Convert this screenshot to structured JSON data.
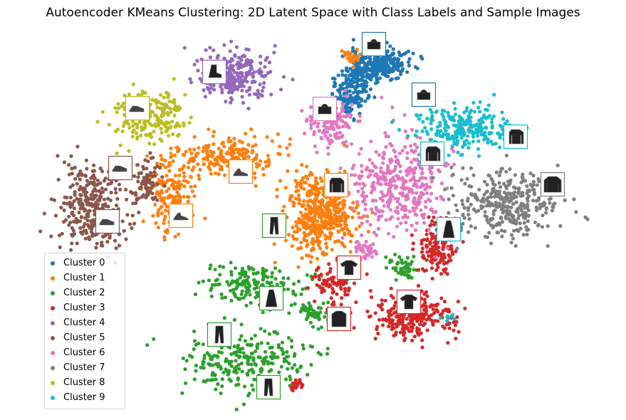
{
  "chart_data": {
    "type": "scatter",
    "title": "Autoencoder KMeans Clustering: 2D Latent Space with Class Labels and Sample Images",
    "xlabel": "",
    "ylabel": "",
    "axes_visible": false,
    "grid": false,
    "legend_position": "lower-left",
    "series": [
      {
        "name": "Cluster 0",
        "color": "#1f77b4",
        "regions": [
          [
            535,
            90,
            34,
            20,
            260
          ],
          [
            490,
            130,
            22,
            26,
            140
          ],
          [
            505,
            105,
            18,
            12,
            60
          ]
        ]
      },
      {
        "name": "Cluster 1",
        "color": "#ff7f0e",
        "regions": [
          [
            450,
            300,
            38,
            50,
            500
          ],
          [
            320,
            220,
            70,
            22,
            220
          ],
          [
            240,
            280,
            30,
            40,
            160
          ],
          [
            495,
            80,
            12,
            8,
            25
          ]
        ]
      },
      {
        "name": "Cluster 2",
        "color": "#2ca02c",
        "regions": [
          [
            340,
            505,
            75,
            35,
            260
          ],
          [
            360,
            400,
            60,
            20,
            180
          ],
          [
            565,
            375,
            18,
            12,
            50
          ],
          [
            440,
            440,
            20,
            15,
            50
          ]
        ]
      },
      {
        "name": "Cluster 3",
        "color": "#d62728",
        "regions": [
          [
            580,
            445,
            50,
            25,
            250
          ],
          [
            615,
            350,
            25,
            30,
            140
          ],
          [
            470,
            400,
            25,
            25,
            90
          ],
          [
            415,
            540,
            10,
            8,
            20
          ]
        ]
      },
      {
        "name": "Cluster 4",
        "color": "#9467bd",
        "regions": [
          [
            330,
            105,
            42,
            28,
            260
          ]
        ]
      },
      {
        "name": "Cluster 5",
        "color": "#8c564b",
        "regions": [
          [
            130,
            290,
            40,
            50,
            320
          ],
          [
            205,
            255,
            15,
            30,
            70
          ]
        ]
      },
      {
        "name": "Cluster 6",
        "color": "#e377c2",
        "regions": [
          [
            560,
            260,
            55,
            55,
            400
          ],
          [
            465,
            170,
            28,
            28,
            140
          ],
          [
            510,
            350,
            15,
            10,
            40
          ]
        ]
      },
      {
        "name": "Cluster 7",
        "color": "#7f7f7f",
        "regions": [
          [
            710,
            285,
            60,
            40,
            340
          ]
        ]
      },
      {
        "name": "Cluster 8",
        "color": "#bcbd22",
        "regions": [
          [
            210,
            160,
            45,
            32,
            230
          ]
        ]
      },
      {
        "name": "Cluster 9",
        "color": "#17becf",
        "regions": [
          [
            650,
            180,
            55,
            26,
            260
          ],
          [
            630,
            445,
            8,
            6,
            10
          ]
        ]
      }
    ],
    "sample_images": [
      {
        "cluster": 0,
        "item": "bag",
        "color": "#1f77b4",
        "x": 525,
        "y": 62
      },
      {
        "cluster": 0,
        "item": "bag",
        "color": "#1f77b4",
        "x": 595,
        "y": 133
      },
      {
        "cluster": 4,
        "item": "ankle-boot",
        "color": "#9467bd",
        "x": 301,
        "y": 101
      },
      {
        "cluster": 8,
        "item": "sneaker",
        "color": "#bcbd22",
        "x": 193,
        "y": 152
      },
      {
        "cluster": 6,
        "item": "bag",
        "color": "#e377c2",
        "x": 456,
        "y": 153
      },
      {
        "cluster": 9,
        "item": "pullover",
        "color": "#17becf",
        "x": 724,
        "y": 192
      },
      {
        "cluster": 9,
        "item": "pullover",
        "color": "#17becf",
        "x": 607,
        "y": 216
      },
      {
        "cluster": 5,
        "item": "sneaker",
        "color": "#8c564b",
        "x": 169,
        "y": 236
      },
      {
        "cluster": 1,
        "item": "sandal",
        "color": "#ff7f0e",
        "x": 338,
        "y": 241
      },
      {
        "cluster": 1,
        "item": "pullover",
        "color": "#ff7f0e",
        "x": 472,
        "y": 260
      },
      {
        "cluster": 7,
        "item": "coat",
        "color": "#7f7f7f",
        "x": 776,
        "y": 259
      },
      {
        "cluster": 1,
        "item": "sandal",
        "color": "#ff7f0e",
        "x": 254,
        "y": 303
      },
      {
        "cluster": 5,
        "item": "sneaker",
        "color": "#8c564b",
        "x": 151,
        "y": 311
      },
      {
        "cluster": 2,
        "item": "trouser",
        "color": "#2ca02c",
        "x": 385,
        "y": 317
      },
      {
        "cluster": 9,
        "item": "dress",
        "color": "#17becf",
        "x": 630,
        "y": 322
      },
      {
        "cluster": 3,
        "item": "t-shirt",
        "color": "#d62728",
        "x": 490,
        "y": 376
      },
      {
        "cluster": 2,
        "item": "dress",
        "color": "#2ca02c",
        "x": 381,
        "y": 419
      },
      {
        "cluster": 3,
        "item": "t-shirt",
        "color": "#d62728",
        "x": 574,
        "y": 424
      },
      {
        "cluster": 3,
        "item": "shirt",
        "color": "#d62728",
        "x": 476,
        "y": 448
      },
      {
        "cluster": 2,
        "item": "trouser",
        "color": "#2ca02c",
        "x": 308,
        "y": 470
      },
      {
        "cluster": 2,
        "item": "trouser",
        "color": "#2ca02c",
        "x": 377,
        "y": 544
      }
    ]
  }
}
